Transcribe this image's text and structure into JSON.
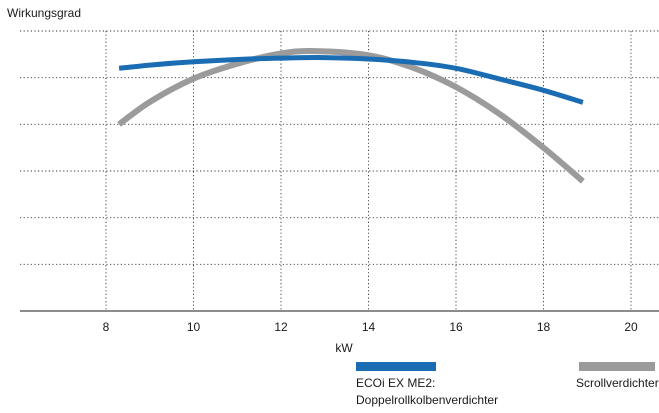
{
  "chart_data": {
    "type": "line",
    "ylabel": "Wirkungsgrad",
    "xlabel": "kW",
    "xlim": [
      6,
      21
    ],
    "ylim": [
      0,
      6
    ],
    "x_ticks": [
      8,
      10,
      12,
      14,
      16,
      18,
      20
    ],
    "x_tick_labels": [
      "8",
      "10",
      "12",
      "14",
      "16",
      "18",
      "20"
    ],
    "y_grid_lines": [
      1,
      2,
      3,
      4,
      5,
      6
    ],
    "grid": true,
    "legend_position": "bottom",
    "series": [
      {
        "name": "ECOi EX ME2: Doppelrollkolbenverdichter",
        "legend_lines": [
          "ECOi EX ME2:",
          "Doppelrollkolbenverdichter"
        ],
        "color": "#1a6db3",
        "x": [
          8.3,
          9,
          10,
          11,
          12,
          13,
          14,
          15,
          16,
          17,
          18,
          18.9
        ],
        "y": [
          5.2,
          5.27,
          5.34,
          5.39,
          5.42,
          5.43,
          5.4,
          5.33,
          5.2,
          4.97,
          4.73,
          4.47
        ]
      },
      {
        "name": "Scrollverdichter",
        "legend_lines": [
          "Scrollverdichter"
        ],
        "color": "#9b9b9b",
        "x": [
          8.3,
          9,
          10,
          11,
          12,
          12.8,
          14,
          15,
          16,
          17,
          18,
          18.9
        ],
        "y": [
          4.0,
          4.48,
          4.98,
          5.3,
          5.52,
          5.57,
          5.48,
          5.22,
          4.8,
          4.22,
          3.5,
          2.78
        ]
      }
    ]
  }
}
